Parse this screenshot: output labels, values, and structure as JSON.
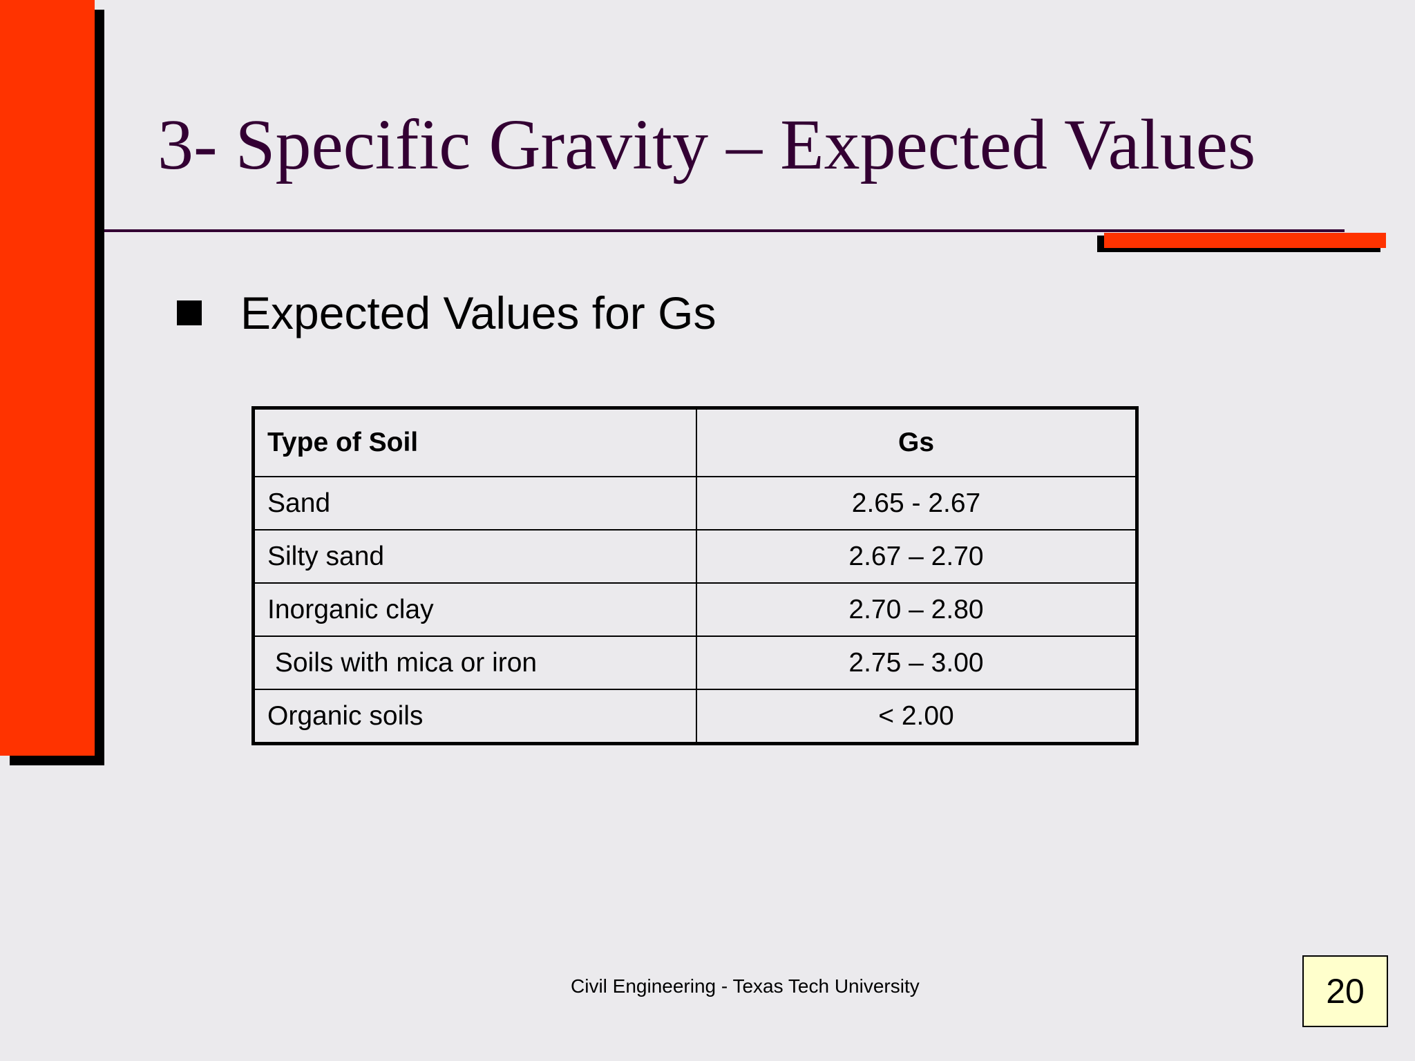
{
  "slide": {
    "title": "3- Specific Gravity – Expected Values",
    "bullet": "Expected Values for Gs",
    "table": {
      "headers": [
        "Type of Soil",
        "Gs"
      ],
      "rows": [
        [
          "Sand",
          "2.65 - 2.67"
        ],
        [
          "Silty sand",
          "2.67 – 2.70"
        ],
        [
          "Inorganic clay",
          "2.70 – 2.80"
        ],
        [
          " Soils with mica or iron",
          "2.75 – 3.00"
        ],
        [
          "Organic soils",
          "< 2.00"
        ]
      ]
    },
    "footer": "Civil Engineering - Texas Tech University",
    "page_number": "20"
  },
  "colors": {
    "background": "#ebeaed",
    "accent": "#ff3300",
    "title": "#330033",
    "page_box": "#ffffcc"
  },
  "icons": {
    "bullet": "square-bullet-icon"
  }
}
